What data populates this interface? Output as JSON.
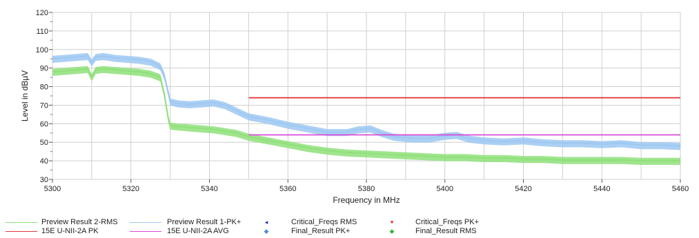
{
  "chart_data": {
    "type": "line",
    "xlabel": "Frequency in MHz",
    "ylabel": "Level in dBµV",
    "xlim": [
      5300,
      5460
    ],
    "ylim": [
      30,
      120
    ],
    "x_ticks": [
      5300,
      5320,
      5340,
      5360,
      5380,
      5400,
      5420,
      5440,
      5460
    ],
    "y_ticks": [
      30,
      40,
      50,
      60,
      70,
      80,
      90,
      100,
      110,
      120
    ],
    "grid": true,
    "legend_position": "bottom",
    "series": [
      {
        "name": "Preview Result 1-PK+",
        "color": "#9ec8f2",
        "x": [
          5300,
          5303,
          5306,
          5309,
          5310,
          5311,
          5313,
          5316,
          5319,
          5322,
          5325,
          5327.5,
          5328.5,
          5329.5,
          5330,
          5332,
          5335,
          5338,
          5341,
          5344,
          5347,
          5350,
          5355,
          5360,
          5365,
          5370,
          5375,
          5378,
          5381,
          5384,
          5387,
          5392,
          5396,
          5400,
          5403,
          5406,
          5410,
          5415,
          5420,
          5425,
          5430,
          5435,
          5440,
          5445,
          5450,
          5455,
          5460
        ],
        "values": [
          95,
          95.5,
          96,
          96.5,
          93,
          96,
          96.5,
          95.5,
          95,
          94.5,
          93.5,
          91,
          86,
          77,
          72,
          71,
          70.5,
          71,
          71.5,
          70,
          67,
          64,
          62,
          59.5,
          57.5,
          55.5,
          55.5,
          57,
          57.5,
          55,
          53,
          52,
          52,
          53.5,
          54,
          52,
          51,
          50.5,
          51,
          50,
          49.5,
          49.5,
          49,
          49.5,
          48.5,
          48.5,
          48
        ]
      },
      {
        "name": "Preview Result 2-RMS",
        "color": "#8fe07a",
        "x": [
          5300,
          5303,
          5306,
          5309,
          5310,
          5311,
          5313,
          5316,
          5319,
          5322,
          5325,
          5327.5,
          5328.5,
          5329.5,
          5330,
          5332,
          5335,
          5338,
          5341,
          5344,
          5347,
          5350,
          5355,
          5360,
          5365,
          5370,
          5375,
          5380,
          5385,
          5390,
          5395,
          5400,
          5405,
          5410,
          5415,
          5420,
          5425,
          5430,
          5435,
          5440,
          5445,
          5450,
          5455,
          5460
        ],
        "values": [
          88,
          88.5,
          89,
          89.5,
          85,
          89,
          89.5,
          89,
          88.5,
          88,
          87,
          85,
          76,
          63,
          59,
          58.5,
          58,
          57.5,
          57,
          56,
          55,
          53,
          51,
          49,
          47,
          45.5,
          44.5,
          44,
          43.5,
          43,
          42.5,
          42,
          42,
          41.5,
          41.5,
          41,
          41,
          40.5,
          40.5,
          40.5,
          40.5,
          40,
          40,
          40
        ]
      },
      {
        "name": "15E U-NII-2A PK",
        "color": "#e03a3a",
        "x": [
          5350,
          5460
        ],
        "values": [
          74,
          74
        ]
      },
      {
        "name": "15E U-NII-2A AVG",
        "color": "#d94bd9",
        "x": [
          5350,
          5460
        ],
        "values": [
          54,
          54
        ]
      }
    ]
  },
  "legend": [
    {
      "label": "Preview Result 2-RMS",
      "color": "#8fe07a",
      "kind": "line"
    },
    {
      "label": "15E U-NII-2A PK",
      "color": "#e03a3a",
      "kind": "line"
    },
    {
      "label": "Preview Result 1-PK+",
      "color": "#9ec8f2",
      "kind": "line"
    },
    {
      "label": "15E U-NII-2A AVG",
      "color": "#d94bd9",
      "kind": "line"
    },
    {
      "label": "Critical_Freqs RMS",
      "color": "#1f2fb5",
      "kind": "marker",
      "glyph": "◂"
    },
    {
      "label": "Final_Result PK+",
      "color": "#4a8fd6",
      "kind": "marker",
      "glyph": "◆"
    },
    {
      "label": "Critical_Freqs PK+",
      "color": "#e03030",
      "kind": "marker",
      "glyph": "✦"
    },
    {
      "label": "Final_Result RMS",
      "color": "#3ab53a",
      "kind": "marker",
      "glyph": "◆"
    }
  ]
}
